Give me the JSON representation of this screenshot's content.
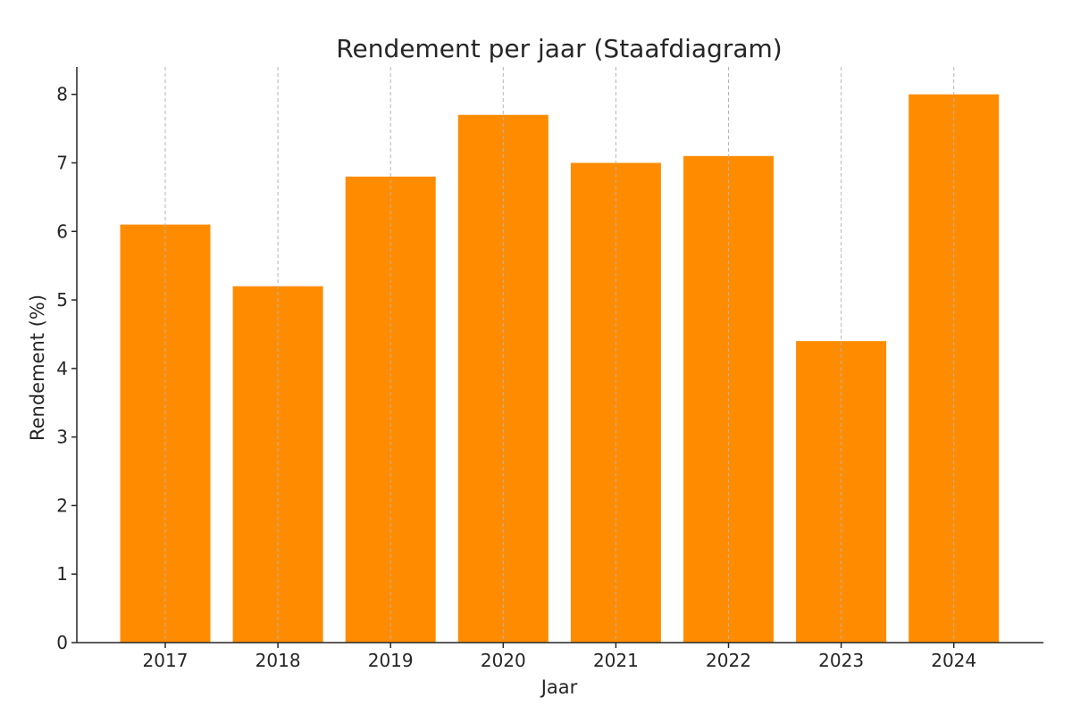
{
  "chart_data": {
    "type": "bar",
    "title": "Rendement per jaar (Staafdiagram)",
    "xlabel": "Jaar",
    "ylabel": "Rendement (%)",
    "categories": [
      "2017",
      "2018",
      "2019",
      "2020",
      "2021",
      "2022",
      "2023",
      "2024"
    ],
    "values": [
      6.1,
      5.2,
      6.8,
      7.7,
      7.0,
      7.1,
      4.4,
      8.0
    ],
    "ylim": [
      0,
      8.4
    ],
    "yticks": [
      0,
      1,
      2,
      3,
      4,
      5,
      6,
      7,
      8
    ],
    "grid": "vertical-dashed",
    "legend": "none",
    "bar_color": "#ff8c00"
  }
}
